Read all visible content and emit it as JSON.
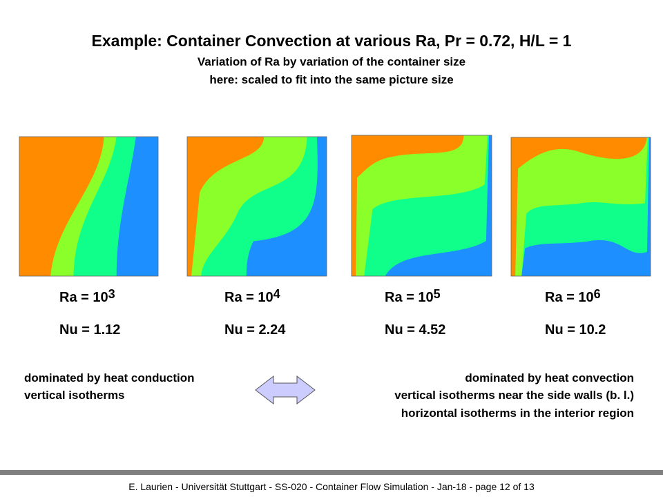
{
  "title": "Example: Container Convection at various Ra, Pr = 0.72, H/L = 1",
  "subtitle_lines": [
    "Variation of Ra by variation of the container size",
    "here: scaled to fit into the same picture size"
  ],
  "panels": [
    {
      "ra_label": "Ra = 10",
      "ra_exponent": "3",
      "nu_label": "Nu = 1.12"
    },
    {
      "ra_label": "Ra = 10",
      "ra_exponent": "4",
      "nu_label": "Nu = 2.24"
    },
    {
      "ra_label": "Ra = 10",
      "ra_exponent": "5",
      "nu_label": "Nu = 4.52"
    },
    {
      "ra_label": "Ra = 10",
      "ra_exponent": "6",
      "nu_label": "Nu = 10.2"
    }
  ],
  "left_text": [
    "dominated by heat conduction",
    "vertical isotherms"
  ],
  "right_text": [
    "dominated by heat convection",
    "vertical isotherms near the side walls (b. l.)",
    "horizontal isotherms in the interior region"
  ],
  "footer": "E. Laurien  -  Universität Stuttgart   - SS-020 - Container Flow Simulation  -  Jan-18  - page 12 of  13"
}
